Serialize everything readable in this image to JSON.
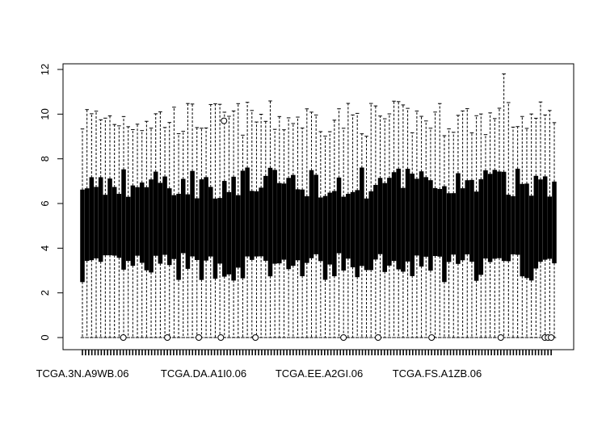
{
  "chart_data": {
    "type": "boxplot",
    "title": "",
    "xlabel": "",
    "ylabel": "",
    "ylim": [
      0,
      12
    ],
    "yticks": [
      0,
      2,
      4,
      6,
      8,
      10,
      12
    ],
    "x_tick_labels_visible": [
      "TCGA.3N.A9WB.06",
      "TCGA.DA.A1I0.06",
      "TCGA.EE.A2GI.06",
      "TCGA.FS.A1ZB.06"
    ],
    "n_boxes": 104,
    "box_summary": {
      "whisker_low": 0,
      "q1_range": [
        2.5,
        3.8
      ],
      "median_range": [
        4.3,
        5.4
      ],
      "q3_range": [
        6.2,
        7.6
      ],
      "whisker_high_range": [
        9.0,
        10.6
      ],
      "max_observed": 11.8
    },
    "outliers": [
      {
        "x": 13,
        "y": 0
      },
      {
        "x": 27,
        "y": 0
      },
      {
        "x": 37,
        "y": 0
      },
      {
        "x": 44,
        "y": 0
      },
      {
        "x": 45,
        "y": 9.7
      },
      {
        "x": 55,
        "y": 0
      },
      {
        "x": 83,
        "y": 0
      },
      {
        "x": 94,
        "y": 0
      },
      {
        "x": 111,
        "y": 0
      },
      {
        "x": 133,
        "y": 0
      },
      {
        "x": 147,
        "y": 0
      },
      {
        "x": 148,
        "y": 0
      },
      {
        "x": 149,
        "y": 0
      }
    ],
    "grid": false,
    "legend": "none",
    "colors": {
      "box_fill": "#000000",
      "line": "#000000",
      "background": "#ffffff"
    }
  }
}
